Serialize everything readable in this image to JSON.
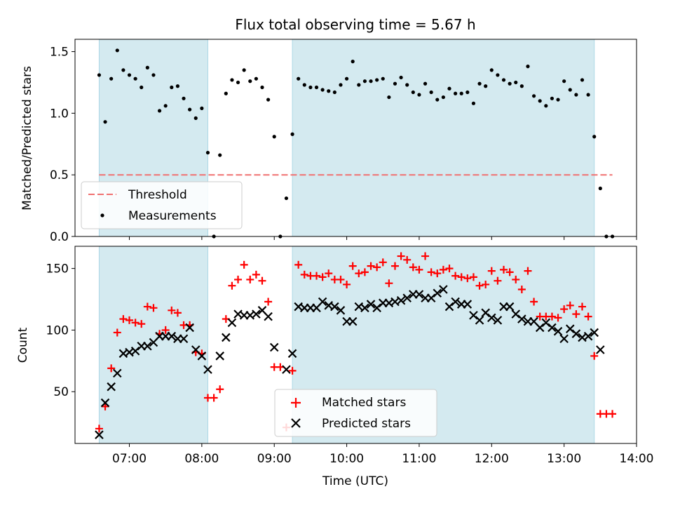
{
  "title": "Flux total observing time = 5.67 h",
  "chart_data": [
    {
      "type": "scatter",
      "panel": "top",
      "title": "Flux total observing time = 5.67 h",
      "ylabel": "Matched/Predicted stars",
      "xlim": [
        "06:15",
        "14:00"
      ],
      "ylim": [
        0,
        1.6
      ],
      "yticks": [
        "0.0",
        "0.5",
        "1.0",
        "1.5"
      ],
      "shaded_intervals": [
        [
          "06:35",
          "08:05"
        ],
        [
          "09:15",
          "13:25"
        ]
      ],
      "threshold": {
        "name": "Threshold",
        "value": 0.5,
        "from": "06:35",
        "to": "13:40"
      },
      "series": [
        {
          "name": "Measurements",
          "points": [
            [
              "06:35",
              1.31
            ],
            [
              "06:40",
              0.93
            ],
            [
              "06:45",
              1.28
            ],
            [
              "06:50",
              1.51
            ],
            [
              "06:55",
              1.35
            ],
            [
              "07:00",
              1.31
            ],
            [
              "07:05",
              1.28
            ],
            [
              "07:10",
              1.21
            ],
            [
              "07:15",
              1.37
            ],
            [
              "07:20",
              1.31
            ],
            [
              "07:25",
              1.02
            ],
            [
              "07:30",
              1.06
            ],
            [
              "07:35",
              1.21
            ],
            [
              "07:40",
              1.22
            ],
            [
              "07:45",
              1.12
            ],
            [
              "07:50",
              1.03
            ],
            [
              "07:55",
              0.96
            ],
            [
              "08:00",
              1.04
            ],
            [
              "08:05",
              0.68
            ],
            [
              "08:10",
              0.0
            ],
            [
              "08:15",
              0.66
            ],
            [
              "08:20",
              1.16
            ],
            [
              "08:25",
              1.27
            ],
            [
              "08:30",
              1.25
            ],
            [
              "08:35",
              1.35
            ],
            [
              "08:40",
              1.26
            ],
            [
              "08:45",
              1.28
            ],
            [
              "08:50",
              1.21
            ],
            [
              "08:55",
              1.11
            ],
            [
              "09:00",
              0.81
            ],
            [
              "09:05",
              0.0
            ],
            [
              "09:10",
              0.31
            ],
            [
              "09:15",
              0.83
            ],
            [
              "09:20",
              1.28
            ],
            [
              "09:25",
              1.23
            ],
            [
              "09:30",
              1.21
            ],
            [
              "09:35",
              1.21
            ],
            [
              "09:40",
              1.19
            ],
            [
              "09:45",
              1.18
            ],
            [
              "09:50",
              1.17
            ],
            [
              "09:55",
              1.23
            ],
            [
              "10:00",
              1.28
            ],
            [
              "10:05",
              1.42
            ],
            [
              "10:10",
              1.23
            ],
            [
              "10:15",
              1.26
            ],
            [
              "10:20",
              1.26
            ],
            [
              "10:25",
              1.27
            ],
            [
              "10:30",
              1.28
            ],
            [
              "10:35",
              1.13
            ],
            [
              "10:40",
              1.24
            ],
            [
              "10:45",
              1.29
            ],
            [
              "10:50",
              1.23
            ],
            [
              "10:55",
              1.17
            ],
            [
              "11:00",
              1.15
            ],
            [
              "11:05",
              1.24
            ],
            [
              "11:10",
              1.17
            ],
            [
              "11:15",
              1.11
            ],
            [
              "11:20",
              1.13
            ],
            [
              "11:25",
              1.2
            ],
            [
              "11:30",
              1.16
            ],
            [
              "11:35",
              1.16
            ],
            [
              "11:40",
              1.17
            ],
            [
              "11:45",
              1.08
            ],
            [
              "11:50",
              1.24
            ],
            [
              "11:55",
              1.22
            ],
            [
              "12:00",
              1.35
            ],
            [
              "12:05",
              1.31
            ],
            [
              "12:10",
              1.27
            ],
            [
              "12:15",
              1.24
            ],
            [
              "12:20",
              1.25
            ],
            [
              "12:25",
              1.22
            ],
            [
              "12:30",
              1.38
            ],
            [
              "12:35",
              1.14
            ],
            [
              "12:40",
              1.1
            ],
            [
              "12:45",
              1.06
            ],
            [
              "12:50",
              1.12
            ],
            [
              "12:55",
              1.11
            ],
            [
              "13:00",
              1.26
            ],
            [
              "13:05",
              1.19
            ],
            [
              "13:10",
              1.15
            ],
            [
              "13:15",
              1.27
            ],
            [
              "13:20",
              1.15
            ],
            [
              "13:25",
              0.81
            ],
            [
              "13:30",
              0.39
            ],
            [
              "13:35",
              0.0
            ],
            [
              "13:40",
              0.0
            ]
          ]
        }
      ],
      "legend": {
        "location": "lower-left",
        "entries": [
          "Threshold",
          "Measurements"
        ]
      }
    },
    {
      "type": "scatter",
      "panel": "bottom",
      "xlabel": "Time (UTC)",
      "ylabel": "Count",
      "xlim": [
        "06:15",
        "14:00"
      ],
      "ylim": [
        8,
        168
      ],
      "yticks": [
        "50",
        "100",
        "150"
      ],
      "xticks": [
        "07:00",
        "08:00",
        "09:00",
        "10:00",
        "11:00",
        "12:00",
        "13:00",
        "14:00"
      ],
      "shaded_intervals": [
        [
          "06:35",
          "08:05"
        ],
        [
          "09:15",
          "13:25"
        ]
      ],
      "series": [
        {
          "name": "Matched stars",
          "marker": "+",
          "color": "#ff0000",
          "points": [
            [
              "06:35",
              20
            ],
            [
              "06:40",
              38
            ],
            [
              "06:45",
              69
            ],
            [
              "06:50",
              98
            ],
            [
              "06:55",
              109
            ],
            [
              "07:00",
              108
            ],
            [
              "07:05",
              106
            ],
            [
              "07:10",
              105
            ],
            [
              "07:15",
              119
            ],
            [
              "07:20",
              118
            ],
            [
              "07:25",
              97
            ],
            [
              "07:30",
              100
            ],
            [
              "07:35",
              116
            ],
            [
              "07:40",
              114
            ],
            [
              "07:45",
              104
            ],
            [
              "07:50",
              104
            ],
            [
              "07:55",
              82
            ],
            [
              "08:00",
              81
            ],
            [
              "08:05",
              45
            ],
            [
              "08:10",
              45
            ],
            [
              "08:15",
              52
            ],
            [
              "08:20",
              109
            ],
            [
              "08:25",
              136
            ],
            [
              "08:30",
              141
            ],
            [
              "08:35",
              153
            ],
            [
              "08:40",
              141
            ],
            [
              "08:45",
              145
            ],
            [
              "08:50",
              140
            ],
            [
              "08:55",
              123
            ],
            [
              "09:00",
              70
            ],
            [
              "09:05",
              70
            ],
            [
              "09:10",
              21
            ],
            [
              "09:15",
              67
            ],
            [
              "09:20",
              153
            ],
            [
              "09:25",
              145
            ],
            [
              "09:30",
              144
            ],
            [
              "09:35",
              144
            ],
            [
              "09:40",
              143
            ],
            [
              "09:45",
              146
            ],
            [
              "09:50",
              141
            ],
            [
              "09:55",
              141
            ],
            [
              "10:00",
              137
            ],
            [
              "10:05",
              152
            ],
            [
              "10:10",
              146
            ],
            [
              "10:15",
              147
            ],
            [
              "10:20",
              152
            ],
            [
              "10:25",
              151
            ],
            [
              "10:30",
              155
            ],
            [
              "10:35",
              138
            ],
            [
              "10:40",
              152
            ],
            [
              "10:45",
              160
            ],
            [
              "10:50",
              157
            ],
            [
              "10:55",
              151
            ],
            [
              "11:00",
              149
            ],
            [
              "11:05",
              160
            ],
            [
              "11:10",
              147
            ],
            [
              "11:15",
              146
            ],
            [
              "11:20",
              149
            ],
            [
              "11:25",
              150
            ],
            [
              "11:30",
              144
            ],
            [
              "11:35",
              143
            ],
            [
              "11:40",
              142
            ],
            [
              "11:45",
              143
            ],
            [
              "11:50",
              136
            ],
            [
              "11:55",
              137
            ],
            [
              "12:00",
              148
            ],
            [
              "12:05",
              140
            ],
            [
              "12:10",
              149
            ],
            [
              "12:15",
              147
            ],
            [
              "12:20",
              141
            ],
            [
              "12:25",
              133
            ],
            [
              "12:30",
              148
            ],
            [
              "12:35",
              123
            ],
            [
              "12:40",
              111
            ],
            [
              "12:45",
              111
            ],
            [
              "12:50",
              111
            ],
            [
              "12:55",
              110
            ],
            [
              "13:00",
              117
            ],
            [
              "13:05",
              120
            ],
            [
              "13:10",
              113
            ],
            [
              "13:15",
              119
            ],
            [
              "13:20",
              111
            ],
            [
              "13:25",
              79
            ],
            [
              "13:30",
              32
            ],
            [
              "13:35",
              32
            ],
            [
              "13:40",
              32
            ]
          ]
        },
        {
          "name": "Predicted stars",
          "marker": "x",
          "color": "#000000",
          "points": [
            [
              "06:35",
              15
            ],
            [
              "06:40",
              41
            ],
            [
              "06:45",
              54
            ],
            [
              "06:50",
              65
            ],
            [
              "06:55",
              81
            ],
            [
              "07:00",
              82
            ],
            [
              "07:05",
              83
            ],
            [
              "07:10",
              87
            ],
            [
              "07:15",
              87
            ],
            [
              "07:20",
              90
            ],
            [
              "07:25",
              95
            ],
            [
              "07:30",
              95
            ],
            [
              "07:35",
              95
            ],
            [
              "07:40",
              93
            ],
            [
              "07:45",
              93
            ],
            [
              "07:50",
              102
            ],
            [
              "07:55",
              84
            ],
            [
              "08:00",
              79
            ],
            [
              "08:05",
              68
            ],
            [
              "08:15",
              79
            ],
            [
              "08:20",
              94
            ],
            [
              "08:25",
              106
            ],
            [
              "08:30",
              113
            ],
            [
              "08:35",
              112
            ],
            [
              "08:40",
              112
            ],
            [
              "08:45",
              113
            ],
            [
              "08:50",
              116
            ],
            [
              "08:55",
              111
            ],
            [
              "09:00",
              86
            ],
            [
              "09:10",
              68
            ],
            [
              "09:15",
              81
            ],
            [
              "09:20",
              119
            ],
            [
              "09:25",
              118
            ],
            [
              "09:30",
              118
            ],
            [
              "09:35",
              118
            ],
            [
              "09:40",
              123
            ],
            [
              "09:45",
              120
            ],
            [
              "09:50",
              119
            ],
            [
              "09:55",
              116
            ],
            [
              "10:00",
              107
            ],
            [
              "10:05",
              107
            ],
            [
              "10:10",
              119
            ],
            [
              "10:15",
              118
            ],
            [
              "10:20",
              121
            ],
            [
              "10:25",
              118
            ],
            [
              "10:30",
              122
            ],
            [
              "10:35",
              122
            ],
            [
              "10:40",
              123
            ],
            [
              "10:45",
              124
            ],
            [
              "10:50",
              126
            ],
            [
              "10:55",
              129
            ],
            [
              "11:00",
              129
            ],
            [
              "11:05",
              126
            ],
            [
              "11:10",
              126
            ],
            [
              "11:15",
              130
            ],
            [
              "11:20",
              133
            ],
            [
              "11:25",
              119
            ],
            [
              "11:30",
              123
            ],
            [
              "11:35",
              121
            ],
            [
              "11:40",
              121
            ],
            [
              "11:45",
              112
            ],
            [
              "11:50",
              108
            ],
            [
              "11:55",
              114
            ],
            [
              "12:00",
              110
            ],
            [
              "12:05",
              108
            ],
            [
              "12:10",
              119
            ],
            [
              "12:15",
              119
            ],
            [
              "12:20",
              113
            ],
            [
              "12:25",
              109
            ],
            [
              "12:30",
              107
            ],
            [
              "12:35",
              107
            ],
            [
              "12:40",
              102
            ],
            [
              "12:45",
              106
            ],
            [
              "12:50",
              102
            ],
            [
              "12:55",
              99
            ],
            [
              "13:00",
              93
            ],
            [
              "13:05",
              101
            ],
            [
              "13:10",
              97
            ],
            [
              "13:15",
              94
            ],
            [
              "13:20",
              95
            ],
            [
              "13:25",
              98
            ],
            [
              "13:30",
              84
            ]
          ]
        }
      ],
      "legend": {
        "location": "lower-center",
        "entries": [
          "Matched stars",
          "Predicted stars"
        ]
      }
    }
  ]
}
